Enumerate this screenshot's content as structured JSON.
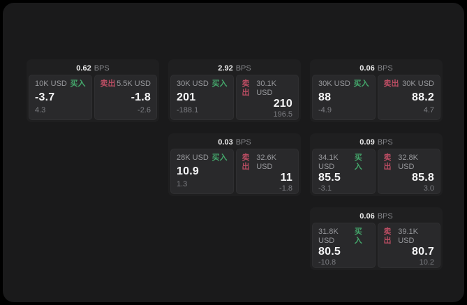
{
  "labels": {
    "bps_unit": "BPS",
    "buy": "买入",
    "sell": "卖出"
  },
  "colors": {
    "background": "#000000",
    "panel_bg": "#1a1a1b",
    "card_bg": "#1f1f20",
    "pane_bg": "#29292b",
    "buy_green": "#44a76b",
    "sell_red": "#bb4d63",
    "primary_text": "#f5f5f6",
    "muted_text": "#97989c"
  },
  "cards": [
    {
      "bps": "0.62",
      "buy": {
        "amount": "10K USD",
        "value": "-3.7",
        "sub": "4.3"
      },
      "sell": {
        "amount": "5.5K USD",
        "value": "-1.8",
        "sub": "-2.6"
      }
    },
    {
      "bps": "2.92",
      "buy": {
        "amount": "30K USD",
        "value": "201",
        "sub": "-188.1"
      },
      "sell": {
        "amount": "30.1K USD",
        "value": "210",
        "sub": "196.5"
      }
    },
    {
      "bps": "0.06",
      "buy": {
        "amount": "30K USD",
        "value": "88",
        "sub": "-4.9"
      },
      "sell": {
        "amount": "30K USD",
        "value": "88.2",
        "sub": "4.7"
      }
    },
    {
      "bps": "0.03",
      "buy": {
        "amount": "28K USD",
        "value": "10.9",
        "sub": "1.3"
      },
      "sell": {
        "amount": "32.6K USD",
        "value": "11",
        "sub": "-1.8"
      }
    },
    {
      "bps": "0.09",
      "buy": {
        "amount": "34.1K USD",
        "value": "85.5",
        "sub": "-3.1"
      },
      "sell": {
        "amount": "32.8K USD",
        "value": "85.8",
        "sub": "3.0"
      }
    },
    {
      "bps": "0.06",
      "buy": {
        "amount": "31.8K USD",
        "value": "80.5",
        "sub": "-10.8"
      },
      "sell": {
        "amount": "39.1K USD",
        "value": "80.7",
        "sub": "10.2"
      }
    }
  ]
}
